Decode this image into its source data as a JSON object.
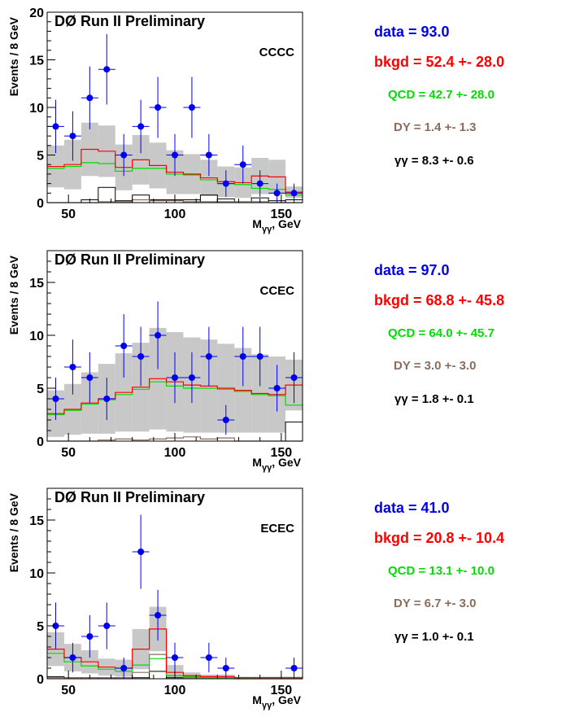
{
  "chart_data": [
    {
      "type": "bar",
      "title": "DØ Run II Preliminary",
      "category_label": "CCCC",
      "xlabel_main": "M",
      "xlabel_sub": "γγ",
      "xlabel_unit": ", GeV",
      "ylabel": "Events / 8 GeV",
      "xlim": [
        40,
        160
      ],
      "ylim": [
        0,
        20
      ],
      "xticks": [
        50,
        100,
        150
      ],
      "yticks": [
        0,
        5,
        10,
        15,
        20
      ],
      "bin_edges": [
        40,
        48,
        56,
        64,
        72,
        80,
        88,
        96,
        104,
        112,
        120,
        128,
        136,
        144,
        152,
        160
      ],
      "bkgd": [
        3.8,
        4.0,
        5.6,
        5.4,
        3.7,
        4.5,
        3.9,
        3.2,
        3.0,
        2.6,
        2.2,
        2.1,
        2.8,
        2.7,
        1.1
      ],
      "bkgd_err": [
        2.2,
        2.6,
        2.8,
        2.7,
        2.4,
        2.6,
        2.4,
        2.3,
        2.1,
        1.9,
        1.6,
        1.6,
        1.9,
        1.8,
        0.6
      ],
      "qcd": [
        3.6,
        3.8,
        4.2,
        4.1,
        3.3,
        3.6,
        3.6,
        3.0,
        2.9,
        2.4,
        2.0,
        1.9,
        1.5,
        1.4,
        0.8
      ],
      "dy": [
        0.0,
        0.0,
        0.0,
        0.1,
        0.1,
        0.3,
        0.2,
        0.2,
        0.1,
        0.1,
        0.1,
        0.1,
        0.1,
        0.0,
        0.0
      ],
      "gg": [
        0.0,
        0.0,
        0.3,
        1.6,
        0.2,
        0.8,
        0.3,
        0.3,
        0.3,
        0.8,
        0.4,
        0.0,
        0.5,
        0.2,
        0.3
      ],
      "data_x": [
        44,
        52,
        60,
        68,
        76,
        84,
        92,
        100,
        108,
        116,
        124,
        132,
        140,
        148,
        156
      ],
      "data_y": [
        8,
        7,
        11,
        14,
        5,
        8,
        10,
        5,
        10,
        5,
        2,
        4,
        2,
        1,
        1
      ],
      "data_err": [
        2.8,
        2.6,
        3.3,
        3.7,
        2.2,
        2.8,
        3.2,
        2.2,
        3.2,
        2.2,
        1.4,
        2.0,
        1.4,
        1.0,
        1.0
      ],
      "summary": {
        "data": "data =  93.0",
        "bkgd": "bkgd =  52.4 +-  28.0",
        "qcd": "QCD =  42.7 +-  28.0",
        "dy": "DY =   1.4 +-   1.3",
        "gg": "γγ =   8.3 +-   0.6"
      }
    },
    {
      "type": "bar",
      "title": "DØ Run II Preliminary",
      "category_label": "CCEC",
      "xlabel_main": "M",
      "xlabel_sub": "γγ",
      "xlabel_unit": ", GeV",
      "ylabel": "Events / 8 GeV",
      "xlim": [
        40,
        160
      ],
      "ylim": [
        0,
        18
      ],
      "xticks": [
        50,
        100,
        150
      ],
      "yticks": [
        0,
        5,
        10,
        15
      ],
      "bin_edges": [
        40,
        48,
        56,
        64,
        72,
        80,
        88,
        96,
        104,
        112,
        120,
        128,
        136,
        144,
        152,
        160
      ],
      "bkgd": [
        2.6,
        3.0,
        3.6,
        4.0,
        4.6,
        5.1,
        5.9,
        5.6,
        5.3,
        5.2,
        5.0,
        4.8,
        4.5,
        4.4,
        5.3
      ],
      "bkgd_err": [
        2.2,
        2.4,
        2.9,
        3.3,
        3.7,
        4.2,
        4.8,
        4.7,
        4.5,
        4.4,
        4.2,
        4.0,
        3.7,
        3.6,
        2.4
      ],
      "qcd": [
        2.5,
        2.9,
        3.5,
        3.9,
        4.4,
        4.9,
        5.6,
        5.2,
        5.0,
        5.0,
        4.9,
        4.7,
        4.4,
        4.3,
        3.4
      ],
      "dy": [
        0.0,
        0.0,
        0.0,
        0.1,
        0.2,
        0.1,
        0.2,
        0.3,
        0.4,
        0.2,
        0.3,
        0.0,
        0.0,
        0.0,
        0.0
      ],
      "gg": [
        0.0,
        0.0,
        0.0,
        0.0,
        0.0,
        0.0,
        0.0,
        0.0,
        0.0,
        0.0,
        0.0,
        0.0,
        0.0,
        0.0,
        1.8
      ],
      "data_x": [
        44,
        52,
        60,
        68,
        76,
        84,
        92,
        100,
        108,
        116,
        124,
        132,
        140,
        148,
        156
      ],
      "data_y": [
        4,
        7,
        6,
        4,
        9,
        8,
        10,
        6,
        6,
        8,
        2,
        8,
        8,
        5,
        6
      ],
      "data_err": [
        2.0,
        2.6,
        2.4,
        2.0,
        3.0,
        2.8,
        3.2,
        2.4,
        2.4,
        2.8,
        1.4,
        2.8,
        2.8,
        2.2,
        2.4
      ],
      "summary": {
        "data": "data =  97.0",
        "bkgd": "bkgd =  68.8 +-  45.8",
        "qcd": "QCD =  64.0 +-  45.7",
        "dy": "DY =   3.0 +-   3.0",
        "gg": "γγ =   1.8 +-   0.1"
      }
    },
    {
      "type": "bar",
      "title": "DØ Run II Preliminary",
      "category_label": "ECEC",
      "xlabel_main": "M",
      "xlabel_sub": "γγ",
      "xlabel_unit": ", GeV",
      "ylabel": "Events / 8 GeV",
      "xlim": [
        40,
        160
      ],
      "ylim": [
        0,
        18
      ],
      "xticks": [
        50,
        100,
        150
      ],
      "yticks": [
        0,
        5,
        10,
        15
      ],
      "bin_edges": [
        40,
        48,
        56,
        64,
        72,
        80,
        88,
        96,
        104,
        112,
        120,
        128,
        136,
        144,
        152,
        160
      ],
      "bkgd": [
        2.8,
        2.0,
        1.6,
        1.1,
        1.0,
        2.8,
        4.7,
        0.6,
        0.3,
        0.2,
        0.2,
        0.1,
        0.1,
        0.1,
        0.1
      ],
      "bkgd_err": [
        1.6,
        1.3,
        1.1,
        0.8,
        0.8,
        1.9,
        2.1,
        0.7,
        0.3,
        0.2,
        0.2,
        0.1,
        0.1,
        0.1,
        0.1
      ],
      "qcd": [
        2.4,
        1.6,
        1.2,
        0.9,
        0.7,
        1.3,
        1.9,
        0.3,
        0.2,
        0.1,
        0.1,
        0.1,
        0.1,
        0.1,
        0.1
      ],
      "dy": [
        0.1,
        0.1,
        0.1,
        0.1,
        0.1,
        0.6,
        2.3,
        0.3,
        0.1,
        0.1,
        0.1,
        0.0,
        0.0,
        0.0,
        0.0
      ],
      "gg": [
        0.2,
        0.1,
        0.1,
        0.1,
        0.1,
        0.1,
        0.7,
        0.1,
        0.0,
        0.0,
        0.0,
        0.0,
        0.0,
        0.0,
        0.0
      ],
      "data_x": [
        44,
        52,
        60,
        68,
        76,
        84,
        92,
        100,
        108,
        116,
        124,
        132,
        140,
        148,
        156
      ],
      "data_y": [
        5,
        2,
        4,
        5,
        1,
        12,
        6,
        2,
        0,
        2,
        1,
        0,
        0,
        0,
        1
      ],
      "data_err": [
        2.2,
        1.4,
        2.0,
        2.2,
        1.0,
        3.5,
        2.4,
        1.4,
        0,
        1.4,
        1.0,
        0,
        0,
        0,
        1.0
      ],
      "summary": {
        "data": "data =  41.0",
        "bkgd": "bkgd =  20.8 +-  10.4",
        "qcd": "QCD =  13.1 +-  10.0",
        "dy": "DY =   6.7 +-   3.0",
        "gg": "γγ =   1.0 +-   0.1"
      }
    }
  ],
  "colors": {
    "data": "#0000ee",
    "bkgd": "#ff0000",
    "qcd": "#00dd00",
    "dy": "#8b6d5c",
    "gg": "#000000",
    "band": "#c8c8c8"
  }
}
